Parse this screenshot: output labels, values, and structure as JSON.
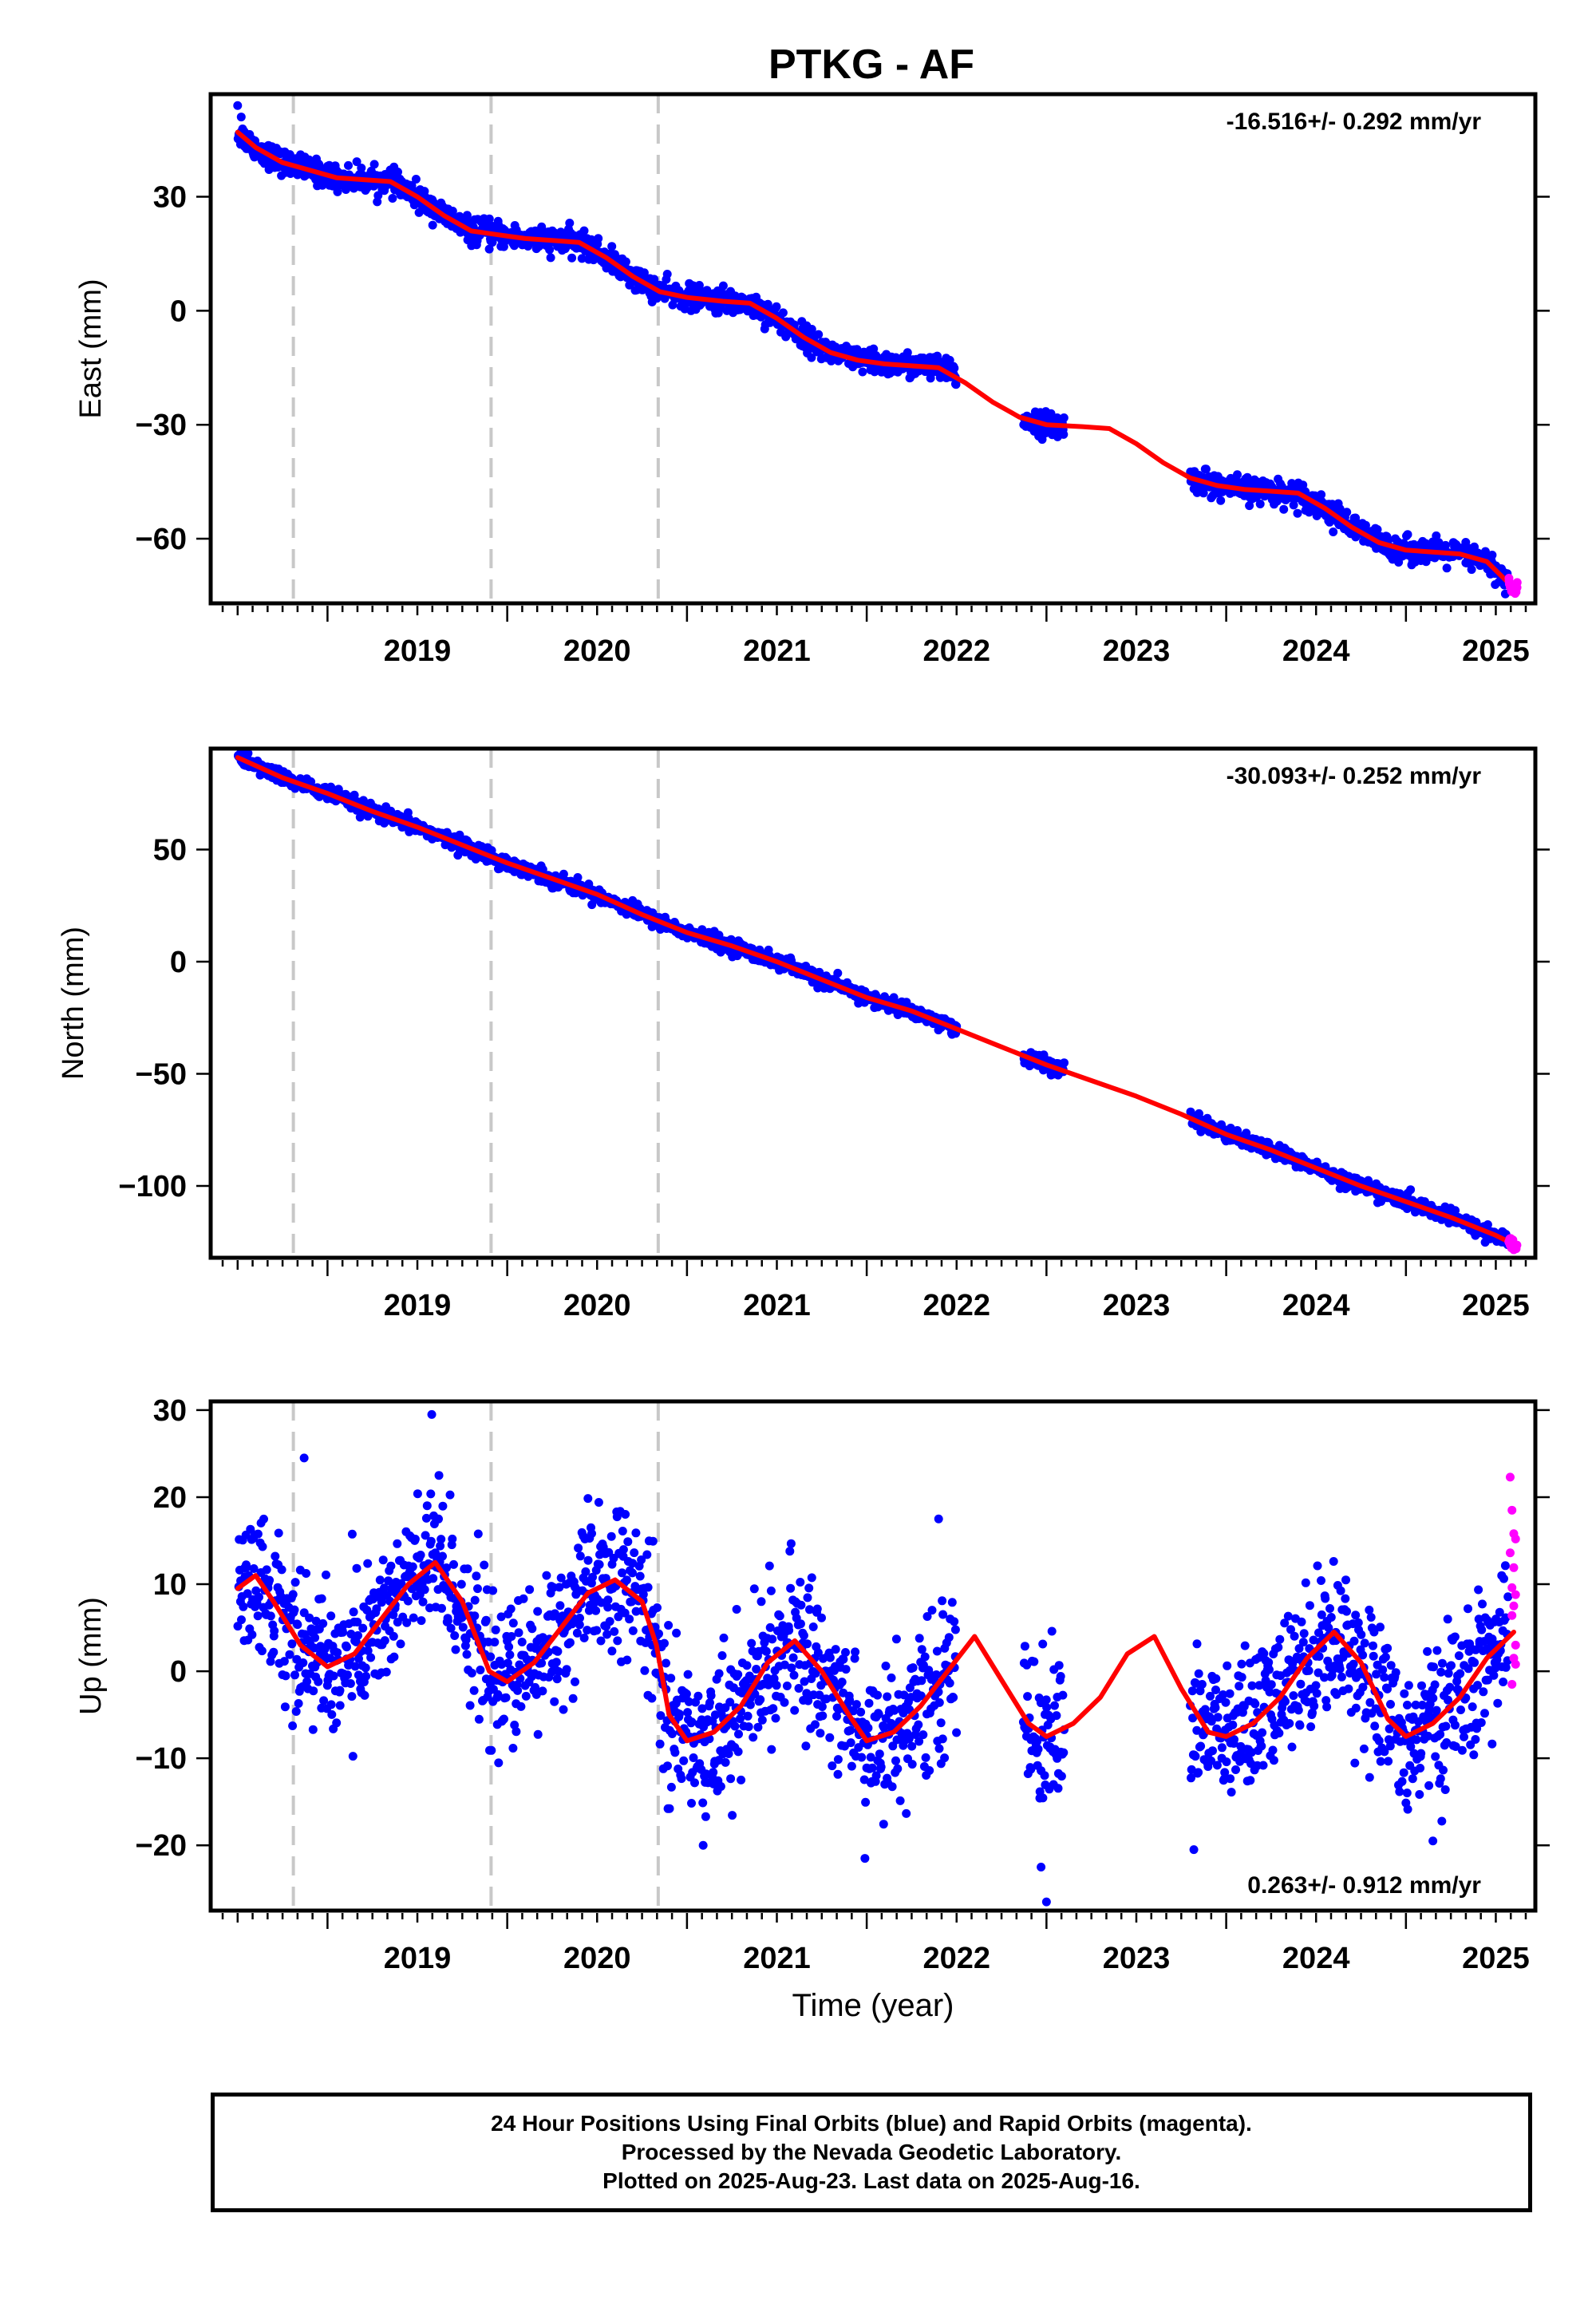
{
  "title": "PTKG - AF",
  "colors": {
    "final_orbits": "#0000ff",
    "rapid_orbits": "#ff00ff",
    "model_fit": "#ff0000",
    "event_lines": "#c8c8c8"
  },
  "chart_data": [
    {
      "type": "scatter",
      "component": "east",
      "ylabel": "East (mm)",
      "xlabel": "",
      "xlim": [
        2018.35,
        2025.72
      ],
      "ylim": [
        -77,
        57
      ],
      "yticks": [
        -60,
        -30,
        0,
        30
      ],
      "ytick_labels": [
        "−60",
        "−30",
        "0",
        "30"
      ],
      "xticks": [
        2019,
        2020,
        2021,
        2022,
        2023,
        2024,
        2025
      ],
      "xtick_labels": [
        "2019",
        "2020",
        "2021",
        "2022",
        "2023",
        "2024",
        "2025"
      ],
      "rate_label": "-16.516+/- 0.292 mm/yr",
      "rate_label_position": "top-right",
      "event_lines_x": [
        2018.81,
        2019.91,
        2020.84
      ],
      "model_points": [
        [
          2018.5,
          47
        ],
        [
          2018.6,
          43
        ],
        [
          2018.75,
          39
        ],
        [
          2018.9,
          37
        ],
        [
          2019.05,
          35
        ],
        [
          2019.2,
          34.5
        ],
        [
          2019.35,
          34
        ],
        [
          2019.5,
          30
        ],
        [
          2019.65,
          25
        ],
        [
          2019.8,
          21
        ],
        [
          2019.95,
          20
        ],
        [
          2020.1,
          19
        ],
        [
          2020.25,
          18.5
        ],
        [
          2020.4,
          18
        ],
        [
          2020.55,
          14
        ],
        [
          2020.7,
          9
        ],
        [
          2020.85,
          5
        ],
        [
          2021.0,
          3.5
        ],
        [
          2021.2,
          2.5
        ],
        [
          2021.35,
          2
        ],
        [
          2021.5,
          -2
        ],
        [
          2021.65,
          -7
        ],
        [
          2021.8,
          -11
        ],
        [
          2021.95,
          -13
        ],
        [
          2022.1,
          -14
        ],
        [
          2022.25,
          -14.5
        ],
        [
          2022.4,
          -15
        ],
        [
          2022.55,
          -19
        ],
        [
          2022.7,
          -24
        ],
        [
          2022.85,
          -28
        ],
        [
          2023.0,
          -30
        ],
        [
          2023.2,
          -30.5
        ],
        [
          2023.35,
          -31
        ],
        [
          2023.5,
          -35
        ],
        [
          2023.65,
          -40
        ],
        [
          2023.8,
          -44
        ],
        [
          2023.95,
          -46
        ],
        [
          2024.1,
          -47
        ],
        [
          2024.25,
          -47.5
        ],
        [
          2024.4,
          -48
        ],
        [
          2024.55,
          -52
        ],
        [
          2024.7,
          -57
        ],
        [
          2024.85,
          -61
        ],
        [
          2025.0,
          -63
        ],
        [
          2025.15,
          -63.5
        ],
        [
          2025.3,
          -64
        ],
        [
          2025.45,
          -66
        ],
        [
          2025.6,
          -73
        ]
      ],
      "final_segments": [
        [
          2018.5,
          2022.5
        ],
        [
          2022.87,
          2023.1
        ],
        [
          2023.8,
          2025.57
        ]
      ],
      "final_scatter_sd": 1.6,
      "rapid_range": [
        2025.57,
        2025.62
      ],
      "rapid_count": 14,
      "outliers": [
        [
          2018.5,
          54
        ],
        [
          2018.52,
          51
        ]
      ]
    },
    {
      "type": "scatter",
      "component": "north",
      "ylabel": "North (mm)",
      "xlabel": "",
      "xlim": [
        2018.35,
        2025.72
      ],
      "ylim": [
        -132,
        95
      ],
      "yticks": [
        -100,
        -50,
        0,
        50
      ],
      "ytick_labels": [
        "−100",
        "−50",
        "0",
        "50"
      ],
      "xticks": [
        2019,
        2020,
        2021,
        2022,
        2023,
        2024,
        2025
      ],
      "xtick_labels": [
        "2019",
        "2020",
        "2021",
        "2022",
        "2023",
        "2024",
        "2025"
      ],
      "rate_label": "-30.093+/- 0.252 mm/yr",
      "rate_label_position": "top-right",
      "event_lines_x": [
        2018.81,
        2019.91,
        2020.84
      ],
      "model_points": [
        [
          2018.5,
          91
        ],
        [
          2018.75,
          82
        ],
        [
          2019.0,
          75
        ],
        [
          2019.25,
          67
        ],
        [
          2019.5,
          60
        ],
        [
          2019.75,
          52
        ],
        [
          2020.0,
          44
        ],
        [
          2020.25,
          37
        ],
        [
          2020.5,
          30
        ],
        [
          2020.75,
          21
        ],
        [
          2021.0,
          13
        ],
        [
          2021.25,
          7
        ],
        [
          2021.5,
          0
        ],
        [
          2021.75,
          -8
        ],
        [
          2022.0,
          -16
        ],
        [
          2022.25,
          -22
        ],
        [
          2022.5,
          -30
        ],
        [
          2022.75,
          -38
        ],
        [
          2023.0,
          -46
        ],
        [
          2023.25,
          -53
        ],
        [
          2023.5,
          -60
        ],
        [
          2023.75,
          -68
        ],
        [
          2024.0,
          -77
        ],
        [
          2024.25,
          -84
        ],
        [
          2024.5,
          -92
        ],
        [
          2024.75,
          -100
        ],
        [
          2025.0,
          -107
        ],
        [
          2025.25,
          -114
        ],
        [
          2025.5,
          -122
        ],
        [
          2025.6,
          -126
        ]
      ],
      "final_segments": [
        [
          2018.5,
          2022.5
        ],
        [
          2022.87,
          2023.1
        ],
        [
          2023.8,
          2025.57
        ]
      ],
      "final_scatter_sd": 1.6,
      "rapid_range": [
        2025.57,
        2025.62
      ],
      "rapid_count": 14,
      "outliers": []
    },
    {
      "type": "scatter",
      "component": "up",
      "ylabel": "Up (mm)",
      "xlabel": "Time (year)",
      "xlim": [
        2018.35,
        2025.72
      ],
      "ylim": [
        -27.5,
        31
      ],
      "yticks": [
        -20,
        -10,
        0,
        10,
        20,
        30
      ],
      "ytick_labels": [
        "−20",
        "−10",
        "0",
        "10",
        "20",
        "30"
      ],
      "xticks": [
        2019,
        2020,
        2021,
        2022,
        2023,
        2024,
        2025
      ],
      "xtick_labels": [
        "2019",
        "2020",
        "2021",
        "2022",
        "2023",
        "2024",
        "2025"
      ],
      "rate_label": "0.263+/- 0.912 mm/yr",
      "rate_label_position": "bottom-right",
      "event_lines_x": [
        2018.81,
        2019.91,
        2020.84
      ],
      "model_points": [
        [
          2018.5,
          9.5
        ],
        [
          2018.6,
          11
        ],
        [
          2018.7,
          8
        ],
        [
          2018.85,
          3
        ],
        [
          2019.0,
          0.5
        ],
        [
          2019.15,
          2
        ],
        [
          2019.3,
          6
        ],
        [
          2019.45,
          10
        ],
        [
          2019.6,
          12.5
        ],
        [
          2019.75,
          8
        ],
        [
          2019.9,
          0
        ],
        [
          2020.0,
          -1.2
        ],
        [
          2020.15,
          1
        ],
        [
          2020.3,
          5
        ],
        [
          2020.45,
          9
        ],
        [
          2020.6,
          10.5
        ],
        [
          2020.75,
          8
        ],
        [
          2020.83,
          3
        ],
        [
          2020.9,
          -5
        ],
        [
          2021.0,
          -8
        ],
        [
          2021.15,
          -7
        ],
        [
          2021.3,
          -4
        ],
        [
          2021.45,
          1
        ],
        [
          2021.6,
          3.5
        ],
        [
          2021.75,
          0
        ],
        [
          2021.9,
          -5
        ],
        [
          2022.0,
          -8
        ],
        [
          2022.15,
          -7
        ],
        [
          2022.3,
          -4
        ],
        [
          2022.45,
          0
        ],
        [
          2022.6,
          4
        ],
        [
          2022.75,
          -1
        ],
        [
          2022.9,
          -6
        ],
        [
          2023.0,
          -7.5
        ],
        [
          2023.15,
          -6
        ],
        [
          2023.3,
          -3
        ],
        [
          2023.45,
          2
        ],
        [
          2023.6,
          4
        ],
        [
          2023.75,
          -2
        ],
        [
          2023.9,
          -7
        ],
        [
          2024.0,
          -7.5
        ],
        [
          2024.15,
          -6
        ],
        [
          2024.3,
          -3
        ],
        [
          2024.45,
          1.5
        ],
        [
          2024.6,
          4.5
        ],
        [
          2024.75,
          1
        ],
        [
          2024.9,
          -5.5
        ],
        [
          2025.0,
          -7.5
        ],
        [
          2025.15,
          -6
        ],
        [
          2025.3,
          -3
        ],
        [
          2025.45,
          1.5
        ],
        [
          2025.6,
          4.5
        ]
      ],
      "final_segments": [
        [
          2018.5,
          2022.5
        ],
        [
          2022.87,
          2023.1
        ],
        [
          2023.8,
          2025.57
        ]
      ],
      "final_scatter_sd": 4.2,
      "rapid_range": [
        2025.57,
        2025.62
      ],
      "rapid_count": 14,
      "outliers": [
        [
          2019.58,
          29.5
        ],
        [
          2018.87,
          24.5
        ],
        [
          2019.62,
          22.5
        ],
        [
          2022.4,
          17.5
        ],
        [
          2023.0,
          -26.5
        ],
        [
          2022.97,
          -22.5
        ],
        [
          2021.99,
          -21.5
        ],
        [
          2023.82,
          -20.5
        ],
        [
          2025.15,
          -19.5
        ],
        [
          2021.09,
          -20
        ]
      ],
      "rapid_points": [
        [
          2025.58,
          22.3
        ],
        [
          2025.59,
          18.5
        ],
        [
          2025.6,
          15.8
        ],
        [
          2025.61,
          15.2
        ],
        [
          2025.58,
          13.6
        ],
        [
          2025.6,
          11.9
        ],
        [
          2025.59,
          9.6
        ],
        [
          2025.61,
          8.8
        ],
        [
          2025.6,
          7.5
        ],
        [
          2025.59,
          6.4
        ],
        [
          2025.61,
          3.0
        ],
        [
          2025.6,
          1.5
        ],
        [
          2025.61,
          0.8
        ],
        [
          2025.59,
          -1.5
        ]
      ]
    }
  ],
  "footer": {
    "line1": "24 Hour Positions Using Final Orbits (blue) and Rapid Orbits (magenta).",
    "line2": "Processed by the Nevada Geodetic Laboratory.",
    "line3": "Plotted on 2025-Aug-23. Last data on 2025-Aug-16."
  }
}
